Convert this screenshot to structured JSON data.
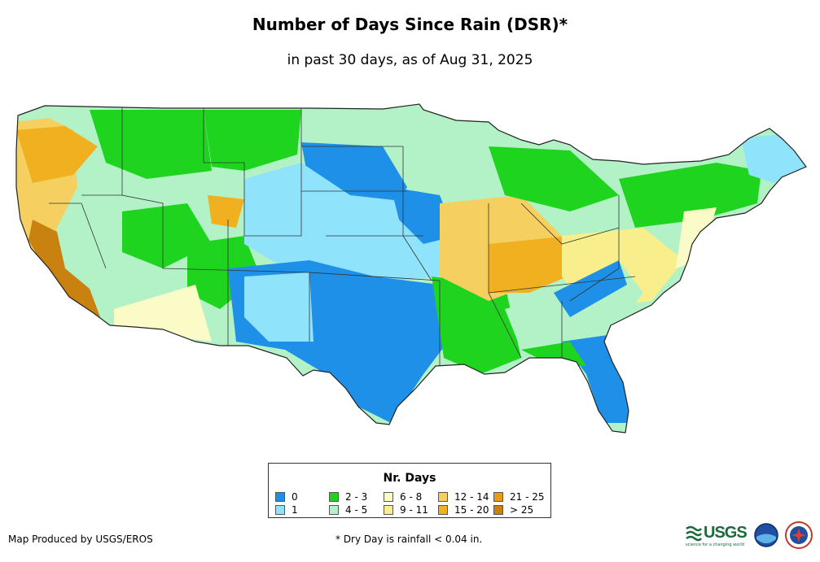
{
  "map": {
    "title": "Number of Days Since Rain (DSR)*",
    "subtitle": "in past 30 days, as of Aug 31, 2025",
    "region": "Contiguous United States"
  },
  "legend": {
    "title": "Nr. Days",
    "items": [
      {
        "label": "0",
        "color": "#1e90e8"
      },
      {
        "label": "1",
        "color": "#8fe3fb"
      },
      {
        "label": "2 - 3",
        "color": "#1fd41f"
      },
      {
        "label": "4 - 5",
        "color": "#b2f2c6"
      },
      {
        "label": "6 - 8",
        "color": "#fbfbc8"
      },
      {
        "label": "9 - 11",
        "color": "#f8ef8c"
      },
      {
        "label": "12 - 14",
        "color": "#f5d060"
      },
      {
        "label": "15 - 20",
        "color": "#f0b020"
      },
      {
        "label": "21 - 25",
        "color": "#e69c14"
      },
      {
        "label": "> 25",
        "color": "#c98210"
      }
    ]
  },
  "footer": {
    "credit": "Map Produced by USGS/EROS",
    "note": "* Dry Day is rainfall < 0.04 in.",
    "logo_text": "USGS",
    "logo_tagline": "science for a changing world"
  }
}
